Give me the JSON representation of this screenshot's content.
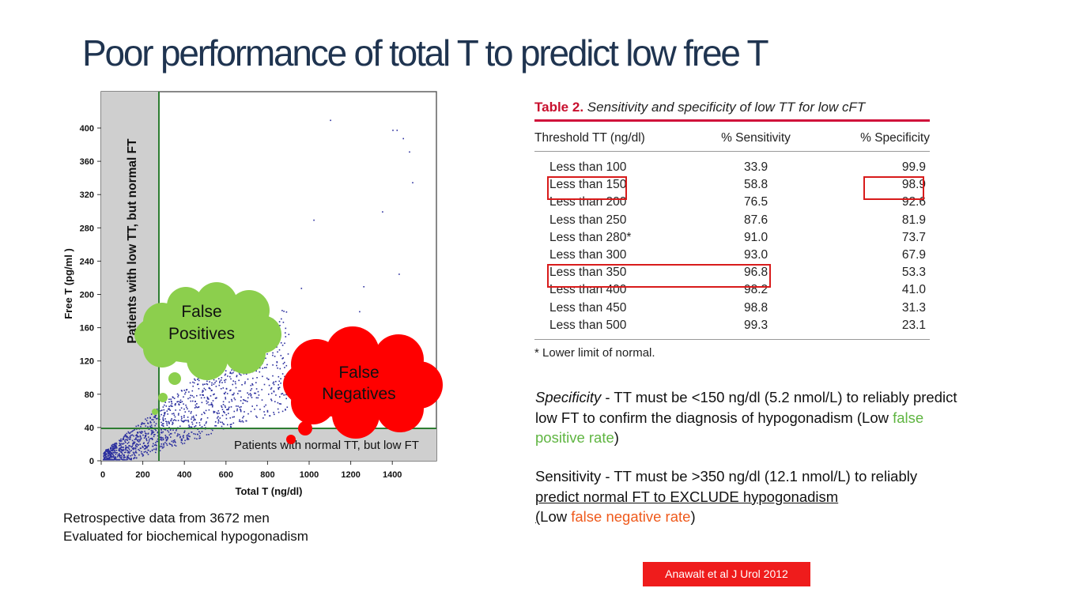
{
  "slide": {
    "title": "Poor performance of total T to predict low free T"
  },
  "plot": {
    "ylabel": "Free T (pg/ml )",
    "xlabel": "Total T (ng/dl)",
    "y_ticks": [
      "0",
      "40",
      "80",
      "120",
      "160",
      "200",
      "240",
      "280",
      "320",
      "360",
      "400"
    ],
    "x_ticks": [
      "0",
      "200",
      "400",
      "600",
      "800",
      "1000",
      "1200",
      "1400"
    ],
    "region_low_tt_label": "Patients with low TT, but normal FT",
    "region_low_ft_label": "Patients with normal TT, but low FT",
    "callout_false_positives": [
      "False",
      "Positives"
    ],
    "callout_false_negatives": [
      "False",
      "Negatives"
    ],
    "colors": {
      "points": "#2b2f9e",
      "shaded_region": "#cfcfcf",
      "threshold_lines": "#2e7d32",
      "false_positive_cloud": "#8ccf4d",
      "false_negative_cloud": "#ff0000"
    }
  },
  "left_caption": {
    "line1": "Retrospective data from 3672 men",
    "line2": "Evaluated for biochemical hypogonadism"
  },
  "table": {
    "number": "Table 2.",
    "description": "Sensitivity and specificity of low TT for low cFT",
    "headers": [
      "Threshold TT (ng/dl)",
      "% Sensitivity",
      "% Specificity"
    ],
    "rows": [
      [
        "Less than 100",
        "33.9",
        "99.9"
      ],
      [
        "Less than 150",
        "58.8",
        "98.9"
      ],
      [
        "Less than 200",
        "76.5",
        "92.6"
      ],
      [
        "Less than 250",
        "87.6",
        "81.9"
      ],
      [
        "Less than 280*",
        "91.0",
        "73.7"
      ],
      [
        "Less than 300",
        "93.0",
        "67.9"
      ],
      [
        "Less than 350",
        "96.8",
        "53.3"
      ],
      [
        "Less than 400",
        "98.2",
        "41.0"
      ],
      [
        "Less than 450",
        "98.8",
        "31.3"
      ],
      [
        "Less than 500",
        "99.3",
        "23.1"
      ]
    ],
    "footnote": "* Lower limit of normal."
  },
  "specificity_text": {
    "term": "Specificity",
    "part1": " - TT must be <150 ng/dl (5.2 nmol/L) to reliably predict low FT to confirm the diagnosis of hypogonadism (Low ",
    "highlight": "false positive rate",
    "part2": ")"
  },
  "sensitivity_text": {
    "part1": "Sensitivity - TT must be >350 ng/dl (12.1 nmol/L) to reliably ",
    "underlined": "predict normal FT to EXCLUDE hypogonadism",
    "part2_underlined": "(",
    "part2": "Low ",
    "highlight": "false negative rate",
    "part3": ")"
  },
  "citation": "Anawalt et al J Urol 2012"
}
